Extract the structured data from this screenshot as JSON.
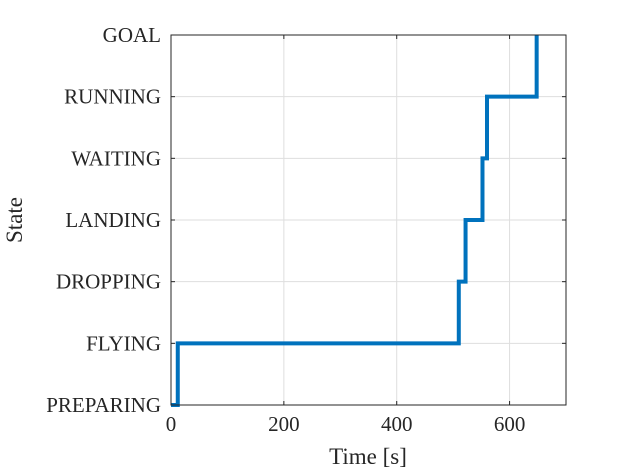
{
  "chart_data": {
    "type": "line",
    "xlabel": "Time [s]",
    "ylabel": "State",
    "xlim": [
      0,
      700
    ],
    "xticks": [
      0,
      200,
      400,
      600
    ],
    "y_categories": [
      "PREPARING",
      "FLYING",
      "DROPPING",
      "LANDING",
      "WAITING",
      "RUNNING",
      "GOAL"
    ],
    "grid": true,
    "series": [
      {
        "color": "#0072bd",
        "points": [
          [
            0,
            "PREPARING"
          ],
          [
            12,
            "PREPARING"
          ],
          [
            12,
            "FLYING"
          ],
          [
            510,
            "FLYING"
          ],
          [
            510,
            "DROPPING"
          ],
          [
            522,
            "DROPPING"
          ],
          [
            522,
            "LANDING"
          ],
          [
            552,
            "LANDING"
          ],
          [
            552,
            "WAITING"
          ],
          [
            560,
            "WAITING"
          ],
          [
            560,
            "RUNNING"
          ],
          [
            648,
            "RUNNING"
          ],
          [
            648,
            "GOAL"
          ]
        ]
      }
    ]
  }
}
